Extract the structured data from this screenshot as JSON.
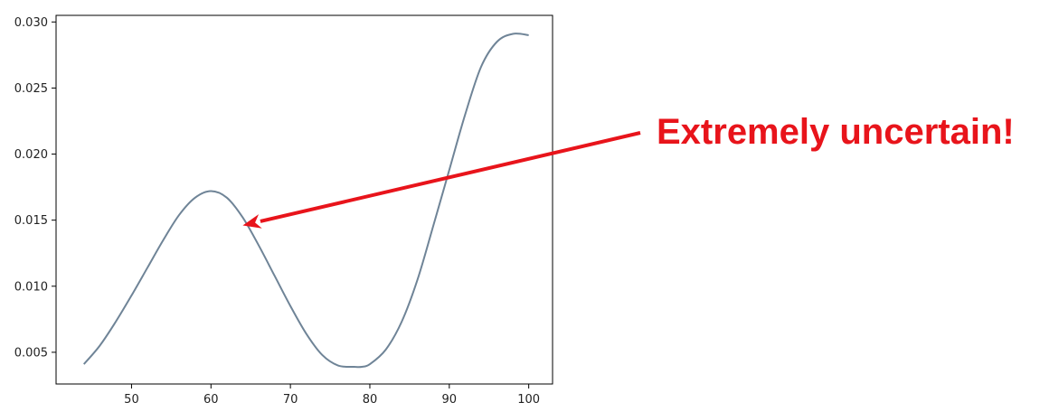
{
  "chart_data": {
    "type": "line",
    "title": "",
    "xlabel": "",
    "ylabel": "",
    "xlim": [
      40.5,
      103
    ],
    "ylim": [
      0.0026,
      0.0305
    ],
    "xticks": [
      50,
      60,
      70,
      80,
      90,
      100
    ],
    "xtick_labels": [
      "50",
      "60",
      "70",
      "80",
      "90",
      "100"
    ],
    "yticks": [
      0.005,
      0.01,
      0.015,
      0.02,
      0.025,
      0.03
    ],
    "ytick_labels": [
      "0.005",
      "0.010",
      "0.015",
      "0.020",
      "0.025",
      "0.030"
    ],
    "grid": false,
    "series": [
      {
        "color": "#6f8497",
        "x": [
          44,
          46,
          48,
          50,
          52,
          54,
          56,
          58,
          60,
          62,
          64,
          66,
          68,
          70,
          72,
          74,
          76,
          78,
          79,
          80,
          82,
          84,
          86,
          88,
          90,
          92,
          94,
          96,
          98,
          100
        ],
        "y": [
          0.0041,
          0.0055,
          0.0073,
          0.0093,
          0.0114,
          0.0135,
          0.0154,
          0.0167,
          0.0172,
          0.0167,
          0.0152,
          0.0131,
          0.0108,
          0.0085,
          0.0064,
          0.0048,
          0.004,
          0.0039,
          0.0039,
          0.0041,
          0.0052,
          0.0073,
          0.0105,
          0.0146,
          0.0188,
          0.023,
          0.0266,
          0.0285,
          0.0291,
          0.029
        ]
      }
    ],
    "annotations": [
      {
        "text": "Extremely uncertain!",
        "color": "#e8141b",
        "arrow_to": [
          64,
          0.0146
        ]
      }
    ]
  }
}
